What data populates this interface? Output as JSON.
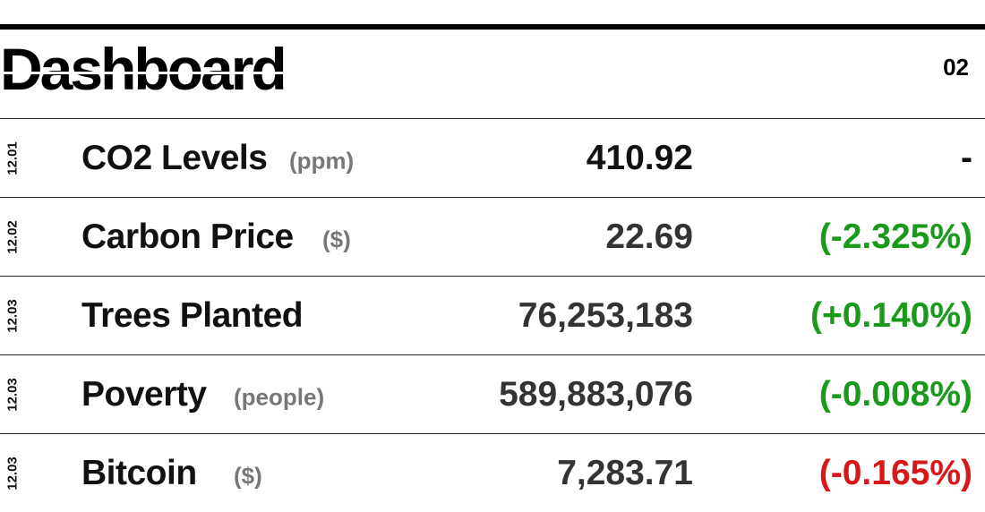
{
  "header": {
    "title": "Dashboard",
    "page_number": "02"
  },
  "colors": {
    "positive_change": "#1a9a1a",
    "negative_change": "#d81818",
    "neutral_change": "#111111",
    "unit_gray": "#777777"
  },
  "rows": [
    {
      "date": "12.01",
      "label": "CO2 Levels",
      "unit": "(ppm)",
      "value": "410.92",
      "change": "-",
      "change_status": "neutral"
    },
    {
      "date": "12.02",
      "label": "Carbon Price",
      "unit": "($)",
      "value": "22.69",
      "change": "(-2.325%)",
      "change_status": "positive"
    },
    {
      "date": "12.03",
      "label": "Trees Planted",
      "unit": "",
      "value": "76,253,183",
      "change": "(+0.140%)",
      "change_status": "positive"
    },
    {
      "date": "12.03",
      "label": "Poverty",
      "unit": "(people)",
      "value": "589,883,076",
      "change": "(-0.008%)",
      "change_status": "positive"
    },
    {
      "date": "12.03",
      "label": "Bitcoin",
      "unit": "($)",
      "value": "7,283.71",
      "change": "(-0.165%)",
      "change_status": "negative"
    }
  ]
}
